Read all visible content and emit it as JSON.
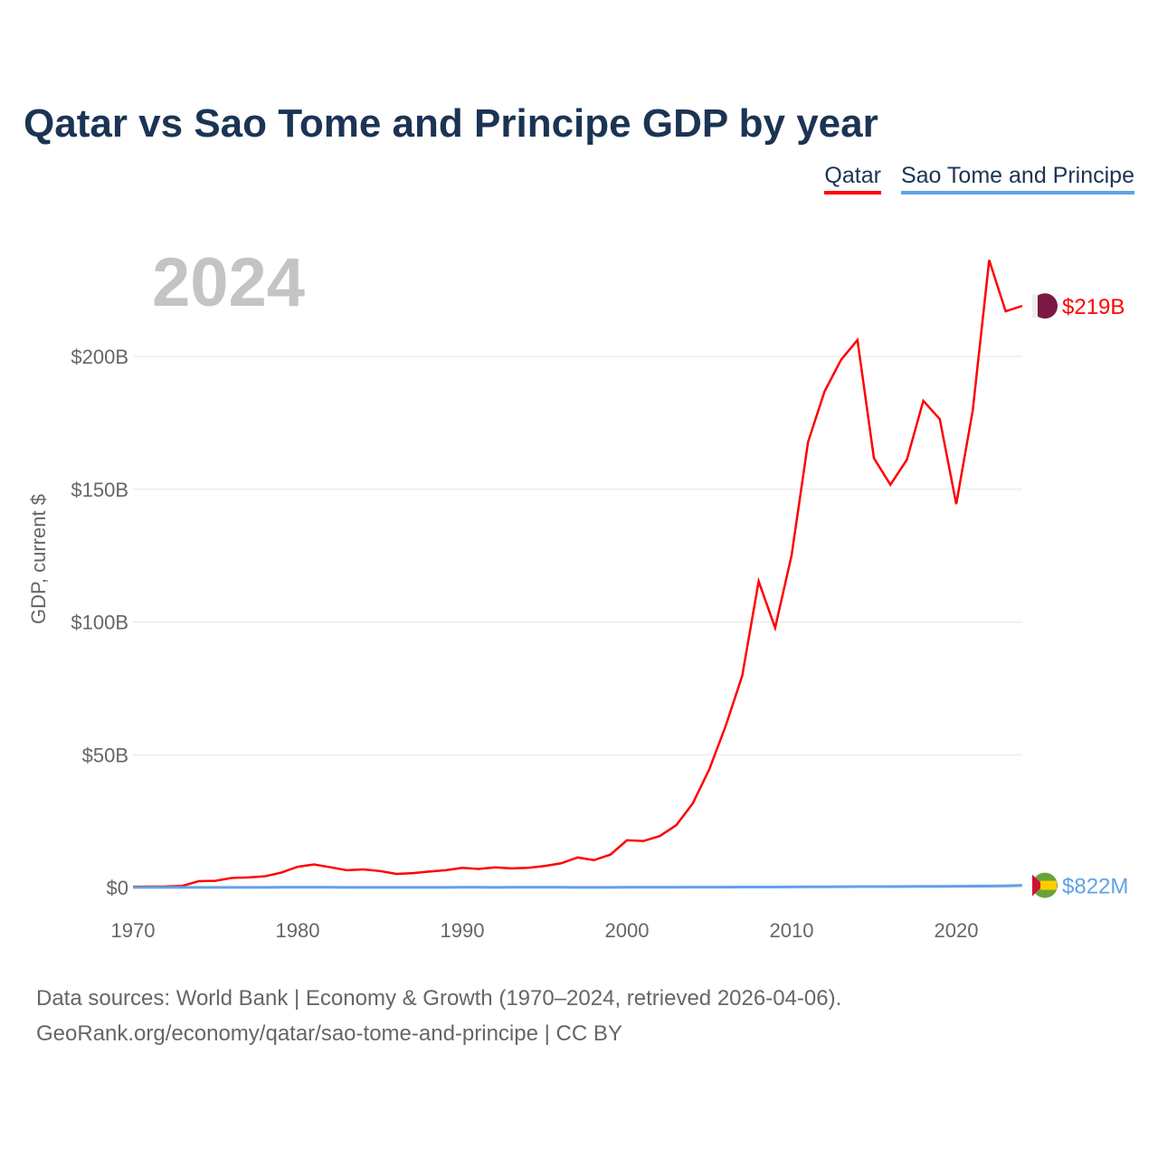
{
  "title": "Qatar vs Sao Tome and Principe GDP by year",
  "year_label": "2024",
  "source_line1": "Data sources: World Bank | Economy & Growth (1970–2024, retrieved 2026-04-06).",
  "source_line2": "GeoRank.org/economy/qatar/sao-tome-and-principe | CC BY",
  "chart_data": {
    "type": "line",
    "title": "Qatar vs Sao Tome and Principe GDP by year",
    "xlabel": "",
    "ylabel": "GDP, current $",
    "xlim": [
      1970,
      2024
    ],
    "ylim": [
      0,
      240
    ],
    "x_ticks": [
      1970,
      1980,
      1990,
      2000,
      2010,
      2020
    ],
    "y_ticks": [
      0,
      50,
      100,
      150,
      200
    ],
    "y_tick_labels": [
      "$0",
      "$50B",
      "$100B",
      "$150B",
      "$200B"
    ],
    "grid": true,
    "legend_position": "top-right",
    "series": [
      {
        "name": "Qatar",
        "color": "#ff0000",
        "end_label": "$219B",
        "values": [
          0.3,
          0.35,
          0.4,
          0.6,
          2.4,
          2.5,
          3.6,
          3.8,
          4.2,
          5.6,
          7.8,
          8.7,
          7.6,
          6.5,
          6.8,
          6.2,
          5.1,
          5.4,
          6.0,
          6.5,
          7.4,
          7.0,
          7.6,
          7.2,
          7.4,
          8.1,
          9.1,
          11.3,
          10.3,
          12.4,
          17.8,
          17.5,
          19.4,
          23.5,
          31.7,
          44.5,
          60.9,
          79.7,
          115.3,
          97.8,
          125.1,
          167.8,
          186.8,
          198.7,
          206.2,
          161.7,
          151.7,
          161.1,
          183.3,
          176.4,
          144.4,
          179.6,
          236.3,
          217.0,
          219.0
        ]
      },
      {
        "name": "Sao Tome and Principe",
        "color": "#5fa2e8",
        "end_label": "$822M",
        "values": [
          0.03,
          0.03,
          0.03,
          0.04,
          0.04,
          0.04,
          0.05,
          0.05,
          0.06,
          0.07,
          0.08,
          0.07,
          0.07,
          0.06,
          0.06,
          0.06,
          0.06,
          0.06,
          0.06,
          0.06,
          0.07,
          0.07,
          0.06,
          0.07,
          0.07,
          0.07,
          0.07,
          0.06,
          0.06,
          0.06,
          0.08,
          0.08,
          0.09,
          0.1,
          0.11,
          0.12,
          0.13,
          0.15,
          0.18,
          0.19,
          0.2,
          0.25,
          0.26,
          0.31,
          0.35,
          0.32,
          0.35,
          0.38,
          0.42,
          0.43,
          0.47,
          0.53,
          0.55,
          0.65,
          0.82
        ]
      }
    ]
  }
}
